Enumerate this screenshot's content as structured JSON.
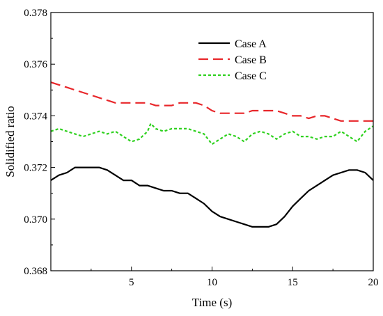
{
  "chart_data": {
    "type": "line",
    "xlabel": "Time (s)",
    "ylabel": "Solidified ratio",
    "xlim": [
      0,
      20
    ],
    "ylim": [
      0.368,
      0.378
    ],
    "xticks": [
      5,
      10,
      15,
      20
    ],
    "xtick_labels": [
      "5",
      "10",
      "15",
      "20"
    ],
    "yticks": [
      0.368,
      0.37,
      0.372,
      0.374,
      0.376,
      0.378
    ],
    "ytick_labels": [
      "0.368",
      "0.370",
      "0.372",
      "0.374",
      "0.376",
      "0.378"
    ],
    "grid": false,
    "legend_position": "top-right",
    "series": [
      {
        "name": "Case A",
        "color": "#000000",
        "dash": "solid",
        "x": [
          0,
          0.5,
          1,
          1.5,
          2,
          2.5,
          3,
          3.5,
          4,
          4.5,
          5,
          5.5,
          6,
          6.5,
          7,
          7.5,
          8,
          8.5,
          9,
          9.5,
          10,
          10.5,
          11,
          11.5,
          12,
          12.5,
          13,
          13.5,
          14,
          14.5,
          15,
          15.5,
          16,
          16.5,
          17,
          17.5,
          18,
          18.5,
          19,
          19.5,
          20
        ],
        "y": [
          0.3715,
          0.3717,
          0.3718,
          0.372,
          0.372,
          0.372,
          0.372,
          0.3719,
          0.3717,
          0.3715,
          0.3715,
          0.3713,
          0.3713,
          0.3712,
          0.3711,
          0.3711,
          0.371,
          0.371,
          0.3708,
          0.3706,
          0.3703,
          0.3701,
          0.37,
          0.3699,
          0.3698,
          0.3697,
          0.3697,
          0.3697,
          0.3698,
          0.3701,
          0.3705,
          0.3708,
          0.3711,
          0.3713,
          0.3715,
          0.3717,
          0.3718,
          0.3719,
          0.3719,
          0.3718,
          0.3715
        ]
      },
      {
        "name": "Case B",
        "color": "#e8262a",
        "dash": "dashed",
        "x": [
          0,
          0.5,
          1,
          1.5,
          2,
          2.5,
          3,
          3.5,
          4,
          4.5,
          5,
          5.5,
          6,
          6.5,
          7,
          7.5,
          8,
          8.5,
          9,
          9.5,
          10,
          10.5,
          11,
          11.5,
          12,
          12.5,
          13,
          13.5,
          14,
          14.5,
          15,
          15.5,
          16,
          16.5,
          17,
          17.5,
          18,
          18.5,
          19,
          19.5,
          20
        ],
        "y": [
          0.3753,
          0.3752,
          0.3751,
          0.375,
          0.3749,
          0.3748,
          0.3747,
          0.3746,
          0.3745,
          0.3745,
          0.3745,
          0.3745,
          0.3745,
          0.3744,
          0.3744,
          0.3744,
          0.3745,
          0.3745,
          0.3745,
          0.3744,
          0.3742,
          0.3741,
          0.3741,
          0.3741,
          0.3741,
          0.3742,
          0.3742,
          0.3742,
          0.3742,
          0.3741,
          0.374,
          0.374,
          0.3739,
          0.374,
          0.374,
          0.3739,
          0.3738,
          0.3738,
          0.3738,
          0.3738,
          0.3738
        ]
      },
      {
        "name": "Case C",
        "color": "#2ed11e",
        "dash": "dotted",
        "x": [
          0,
          0.5,
          1,
          1.5,
          2,
          2.5,
          3,
          3.5,
          4,
          4.5,
          5,
          5.5,
          6,
          6.2,
          6.5,
          7,
          7.5,
          8,
          8.5,
          9,
          9.5,
          10,
          10.5,
          11,
          11.5,
          12,
          12.5,
          13,
          13.5,
          14,
          14.5,
          15,
          15.5,
          16,
          16.5,
          17,
          17.5,
          18,
          18.5,
          19,
          19.5,
          20
        ],
        "y": [
          0.3734,
          0.3735,
          0.3734,
          0.3733,
          0.3732,
          0.3733,
          0.3734,
          0.3733,
          0.3734,
          0.3732,
          0.373,
          0.3731,
          0.3734,
          0.3737,
          0.3735,
          0.3734,
          0.3735,
          0.3735,
          0.3735,
          0.3734,
          0.3733,
          0.3729,
          0.3731,
          0.3733,
          0.3732,
          0.373,
          0.3733,
          0.3734,
          0.3733,
          0.3731,
          0.3733,
          0.3734,
          0.3732,
          0.3732,
          0.3731,
          0.3732,
          0.3732,
          0.3734,
          0.3732,
          0.373,
          0.3734,
          0.3736
        ]
      }
    ]
  }
}
